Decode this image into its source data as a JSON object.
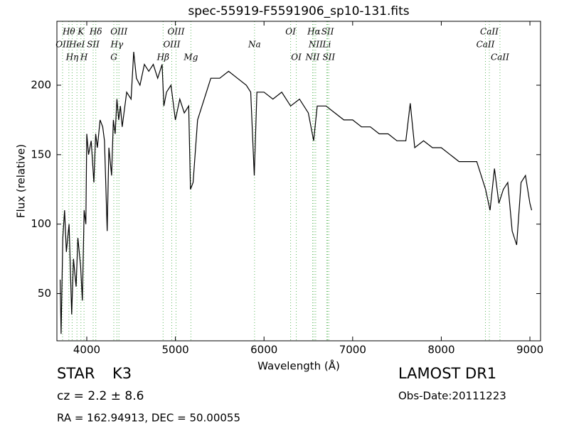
{
  "chart_data": {
    "type": "line",
    "title": "spec-55919-F5591906_sp10-131.fits",
    "xlabel": "Wavelength (Å)",
    "ylabel": "Flux (relative)",
    "x": [
      3700,
      3710,
      3730,
      3750,
      3770,
      3800,
      3830,
      3850,
      3880,
      3900,
      3930,
      3950,
      3970,
      3990,
      4000,
      4020,
      4050,
      4080,
      4100,
      4120,
      4150,
      4180,
      4200,
      4230,
      4250,
      4280,
      4300,
      4320,
      4340,
      4360,
      4380,
      4400,
      4450,
      4500,
      4530,
      4560,
      4600,
      4650,
      4700,
      4750,
      4800,
      4850,
      4870,
      4900,
      4950,
      5000,
      5050,
      5100,
      5150,
      5170,
      5200,
      5250,
      5300,
      5350,
      5400,
      5500,
      5600,
      5700,
      5800,
      5850,
      5890,
      5920,
      6000,
      6100,
      6200,
      6300,
      6400,
      6500,
      6560,
      6600,
      6700,
      6800,
      6900,
      7000,
      7100,
      7200,
      7300,
      7400,
      7500,
      7600,
      7650,
      7700,
      7800,
      7900,
      8000,
      8100,
      8200,
      8300,
      8400,
      8500,
      8550,
      8600,
      8650,
      8700,
      8750,
      8800,
      8850,
      8900,
      8950,
      9000,
      9020
    ],
    "series": [
      {
        "name": "flux",
        "color": "#000000",
        "values": [
          60,
          21,
          90,
          110,
          80,
          100,
          35,
          75,
          55,
          90,
          70,
          45,
          110,
          100,
          165,
          150,
          160,
          130,
          165,
          155,
          175,
          170,
          160,
          95,
          155,
          135,
          175,
          165,
          190,
          175,
          185,
          170,
          195,
          190,
          224,
          205,
          200,
          215,
          210,
          215,
          205,
          215,
          185,
          195,
          200,
          175,
          190,
          180,
          185,
          125,
          130,
          175,
          185,
          195,
          205,
          205,
          210,
          205,
          200,
          195,
          135,
          195,
          195,
          190,
          195,
          185,
          190,
          180,
          160,
          185,
          185,
          180,
          175,
          175,
          170,
          170,
          165,
          165,
          160,
          160,
          187,
          155,
          160,
          155,
          155,
          150,
          145,
          145,
          145,
          125,
          110,
          140,
          115,
          125,
          130,
          95,
          85,
          130,
          135,
          115,
          110
        ]
      }
    ],
    "xlim": [
      3663,
      9120
    ],
    "ylim": [
      16,
      246
    ],
    "xticks": [
      4000,
      5000,
      6000,
      7000,
      8000,
      9000
    ],
    "yticks": [
      50,
      100,
      150,
      200
    ],
    "line_color": "#5fb85f",
    "lines": [
      {
        "label": "Hθ",
        "wavelength": 3798
      },
      {
        "label": "K",
        "wavelength": 3934
      },
      {
        "label": "Hδ",
        "wavelength": 4102
      },
      {
        "label": "OIII",
        "wavelength": 4363
      },
      {
        "label": "OIII",
        "wavelength": 5007
      },
      {
        "label": "OI",
        "wavelength": 6300
      },
      {
        "label": "Hα",
        "wavelength": 6563
      },
      {
        "label": "SII",
        "wavelength": 6717
      },
      {
        "label": "CaII",
        "wavelength": 8542
      },
      {
        "label": "OII",
        "wavelength": 3727
      },
      {
        "label": "HeI",
        "wavelength": 3889
      },
      {
        "label": "SII",
        "wavelength": 4072
      },
      {
        "label": "Hγ",
        "wavelength": 4340
      },
      {
        "label": "OIII",
        "wavelength": 4959
      },
      {
        "label": "Na",
        "wavelength": 5893
      },
      {
        "label": "NII",
        "wavelength": 6583
      },
      {
        "label": "Li",
        "wavelength": 6708
      },
      {
        "label": "CaII",
        "wavelength": 8498
      },
      {
        "label": "Hη",
        "wavelength": 3835
      },
      {
        "label": "H",
        "wavelength": 3969
      },
      {
        "label": "G",
        "wavelength": 4305
      },
      {
        "label": "Hβ",
        "wavelength": 4861
      },
      {
        "label": "Mg",
        "wavelength": 5175
      },
      {
        "label": "OI",
        "wavelength": 6364
      },
      {
        "label": "NII",
        "wavelength": 6548
      },
      {
        "label": "SII",
        "wavelength": 6731
      },
      {
        "label": "CaII",
        "wavelength": 8662
      }
    ],
    "info": {
      "class": "STAR",
      "subclass": "K3",
      "cz": "cz = 2.2 ± 8.6",
      "radec": "RA = 162.94913, DEC = 50.00055",
      "survey": "LAMOST DR1",
      "date": "Obs-Date:20111223"
    }
  }
}
